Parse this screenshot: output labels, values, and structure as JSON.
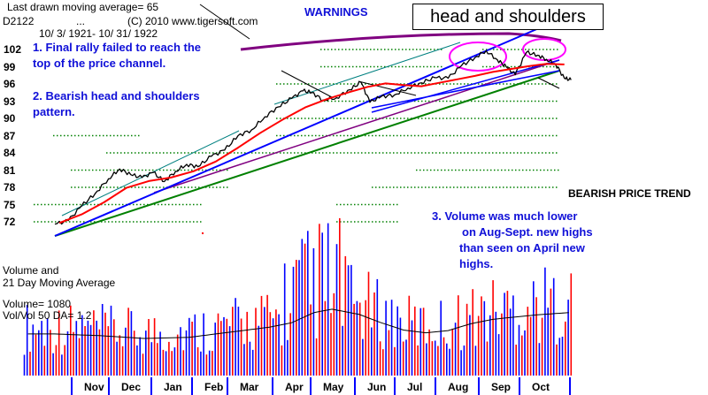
{
  "header": {
    "last_ma": "Last drawn moving average= 65",
    "symbol": "D2122",
    "dots": "...",
    "copyright": "(C) 2010 www.tigersoft.com",
    "date_range": "10/ 3/ 1921- 10/ 31/ 1922",
    "warnings": "WARNINGS",
    "pattern_box": "head and shoulders"
  },
  "annotations": {
    "note1_line1": "1. Final rally failed to reach the",
    "note1_line2": "top of the price channel.",
    "note2_line1": "2. Bearish head and shoulders",
    "note2_line2": "pattern.",
    "bearish_trend": "BEARISH PRICE TREND",
    "note3_line1": "3.    Volume was much lower",
    "note3_line2": "on Aug-Sept. new highs",
    "note3_line3": "than seen on April new",
    "note3_line4": "highs."
  },
  "volume_panel": {
    "title_line1": "Volume and",
    "title_line2": "21 Day Moving Average",
    "volume_value": "Volume= 1080",
    "ratio": "Vol/Vol 50 DA= 1.2"
  },
  "colors": {
    "price": "#000000",
    "ma": "#ff0000",
    "support": "#008000",
    "channel": "#0000ff",
    "trend": "#800080",
    "circles": "#ff00ff",
    "annotation_text": "#1010d8",
    "volume_up": "#ff0000",
    "volume_down": "#0000ff"
  },
  "chart_data": {
    "type": "line",
    "title": "",
    "y_ticks": [
      "102",
      "99",
      "96",
      "93",
      "90",
      "87",
      "84",
      "81",
      "78",
      "75",
      "72"
    ],
    "ylim": [
      70,
      104
    ],
    "x_categories": [
      "Nov",
      "Dec",
      "Jan",
      "Feb",
      "Mar",
      "Apr",
      "May",
      "Jun",
      "Jul",
      "Aug",
      "Sep",
      "Oct"
    ],
    "series": [
      {
        "key": "price",
        "values": [
          [
            0.0,
            71.6
          ],
          [
            0.3,
            72.2
          ],
          [
            0.6,
            74.8
          ],
          [
            0.9,
            76.9
          ],
          [
            1.2,
            79.5
          ],
          [
            1.45,
            81.2
          ],
          [
            1.7,
            80.2
          ],
          [
            1.95,
            79.7
          ],
          [
            2.2,
            80.6
          ],
          [
            2.45,
            79.0
          ],
          [
            2.7,
            80.8
          ],
          [
            2.95,
            82.0
          ],
          [
            3.2,
            81.6
          ],
          [
            3.5,
            83.4
          ],
          [
            3.8,
            84.5
          ],
          [
            4.1,
            87.0
          ],
          [
            4.4,
            88.0
          ],
          [
            4.7,
            90.3
          ],
          [
            5.0,
            92.0
          ],
          [
            5.3,
            93.5
          ],
          [
            5.55,
            94.8
          ],
          [
            5.75,
            94.5
          ],
          [
            6.0,
            93.2
          ],
          [
            6.3,
            93.6
          ],
          [
            6.6,
            95.0
          ],
          [
            6.85,
            96.3
          ],
          [
            7.05,
            92.8
          ],
          [
            7.3,
            93.8
          ],
          [
            7.6,
            94.1
          ],
          [
            7.9,
            95.3
          ],
          [
            8.2,
            96.2
          ],
          [
            8.5,
            97.1
          ],
          [
            8.8,
            97.0
          ],
          [
            9.1,
            99.2
          ],
          [
            9.4,
            100.6
          ],
          [
            9.65,
            101.8
          ],
          [
            9.9,
            100.2
          ],
          [
            10.1,
            99.0
          ],
          [
            10.3,
            97.6
          ],
          [
            10.55,
            101.5
          ],
          [
            10.8,
            101.0
          ],
          [
            11.0,
            100.3
          ],
          [
            11.2,
            99.5
          ],
          [
            11.4,
            97.0
          ],
          [
            11.55,
            96.7
          ]
        ]
      },
      {
        "key": "ma",
        "values": [
          [
            0.1,
            71.8
          ],
          [
            0.6,
            73.3
          ],
          [
            1.1,
            75.4
          ],
          [
            1.6,
            77.9
          ],
          [
            2.1,
            79.1
          ],
          [
            2.6,
            79.7
          ],
          [
            3.1,
            80.8
          ],
          [
            3.6,
            82.5
          ],
          [
            4.1,
            84.9
          ],
          [
            4.6,
            87.5
          ],
          [
            5.1,
            89.8
          ],
          [
            5.6,
            91.9
          ],
          [
            6.1,
            93.4
          ],
          [
            6.6,
            94.6
          ],
          [
            7.0,
            95.5
          ],
          [
            7.4,
            96.1
          ],
          [
            7.8,
            95.8
          ],
          [
            8.2,
            95.6
          ],
          [
            8.6,
            96.2
          ],
          [
            9.0,
            96.8
          ],
          [
            9.4,
            97.4
          ],
          [
            9.8,
            98.1
          ],
          [
            10.2,
            98.6
          ],
          [
            10.6,
            99.1
          ],
          [
            11.0,
            99.5
          ],
          [
            11.4,
            99.4
          ]
        ]
      }
    ],
    "volume": {
      "ma_values": [
        [
          0.0,
          370
        ],
        [
          1.0,
          355
        ],
        [
          2.0,
          330
        ],
        [
          3.0,
          340
        ],
        [
          4.0,
          390
        ],
        [
          4.8,
          430
        ],
        [
          5.3,
          470
        ],
        [
          5.8,
          560
        ],
        [
          6.2,
          590
        ],
        [
          6.8,
          545
        ],
        [
          7.3,
          470
        ],
        [
          7.8,
          405
        ],
        [
          8.3,
          380
        ],
        [
          8.8,
          400
        ],
        [
          9.3,
          460
        ],
        [
          9.8,
          500
        ],
        [
          10.3,
          520
        ],
        [
          10.8,
          540
        ],
        [
          11.5,
          560
        ]
      ],
      "ylim": [
        0,
        1100
      ]
    }
  }
}
